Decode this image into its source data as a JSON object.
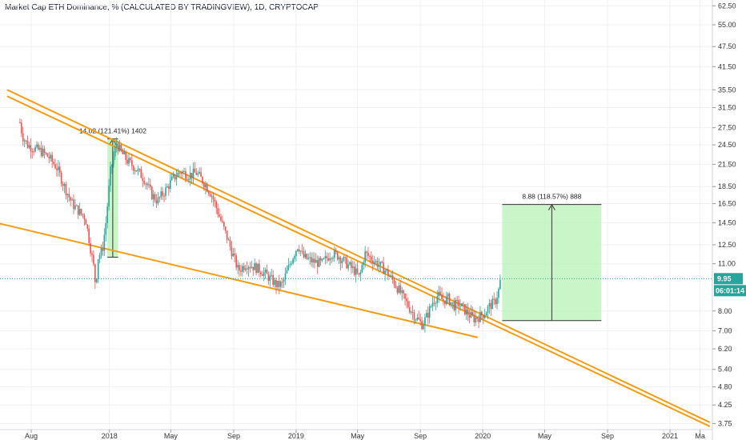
{
  "title": "Market Cap ETH Dominance, % (CALCULATED BY TRADINGVIEW), 1D, CRYPTOCAP",
  "colors": {
    "up": "#26a69a",
    "down": "#ef5350",
    "trendline": "#f39c12",
    "target_box": "#b7f2b7",
    "price_line": "#26a69a",
    "grid": "#eef1f5"
  },
  "chart_data": {
    "type": "candlestick",
    "title": "Market Cap ETH Dominance, % (CALCULATED BY TRADINGVIEW), 1D, CRYPTOCAP",
    "y_scale": "log",
    "y_ticks": [
      "62.50",
      "55.00",
      "47.50",
      "41.50",
      "35.50",
      "31.50",
      "27.50",
      "24.50",
      "21.50",
      "18.50",
      "16.50",
      "14.50",
      "12.50",
      "11.00",
      "8.00",
      "7.00",
      "6.20",
      "5.40",
      "4.80",
      "4.25",
      "3.75"
    ],
    "x_ticks": [
      "Aug",
      "2018",
      "May",
      "Sep",
      "2019",
      "May",
      "Sep",
      "2020",
      "May",
      "Sep",
      "2021",
      "Ma"
    ],
    "ylim": [
      3.6,
      65
    ],
    "xlim": [
      "2017-06-01",
      "2021-03-25"
    ],
    "price_path": [
      [
        "2017-07-10",
        28.5
      ],
      [
        "2017-07-15",
        26.0
      ],
      [
        "2017-07-25",
        24.5
      ],
      [
        "2017-08-05",
        24.0
      ],
      [
        "2017-08-20",
        23.5
      ],
      [
        "2017-09-05",
        22.5
      ],
      [
        "2017-09-20",
        21.0
      ],
      [
        "2017-10-05",
        18.5
      ],
      [
        "2017-10-20",
        16.5
      ],
      [
        "2017-11-05",
        15.5
      ],
      [
        "2017-11-15",
        15.0
      ],
      [
        "2017-11-22",
        13.0
      ],
      [
        "2017-12-01",
        10.8
      ],
      [
        "2017-12-05",
        9.5
      ],
      [
        "2017-12-10",
        11.5
      ],
      [
        "2017-12-18",
        12.0
      ],
      [
        "2017-12-25",
        14.5
      ],
      [
        "2018-01-03",
        20.5
      ],
      [
        "2018-01-10",
        23.0
      ],
      [
        "2018-01-15",
        24.8
      ],
      [
        "2018-01-22",
        23.5
      ],
      [
        "2018-02-05",
        22.0
      ],
      [
        "2018-02-20",
        21.0
      ],
      [
        "2018-03-10",
        19.5
      ],
      [
        "2018-03-25",
        17.5
      ],
      [
        "2018-04-05",
        16.8
      ],
      [
        "2018-04-20",
        18.0
      ],
      [
        "2018-05-05",
        19.5
      ],
      [
        "2018-05-20",
        20.5
      ],
      [
        "2018-06-05",
        20.0
      ],
      [
        "2018-06-20",
        20.3
      ],
      [
        "2018-07-05",
        19.0
      ],
      [
        "2018-07-20",
        17.5
      ],
      [
        "2018-08-05",
        15.0
      ],
      [
        "2018-08-20",
        13.0
      ],
      [
        "2018-09-01",
        11.5
      ],
      [
        "2018-09-10",
        10.5
      ],
      [
        "2018-09-25",
        11.0
      ],
      [
        "2018-10-10",
        10.8
      ],
      [
        "2018-10-25",
        10.5
      ],
      [
        "2018-11-10",
        10.0
      ],
      [
        "2018-11-25",
        9.5
      ],
      [
        "2018-12-05",
        9.6
      ],
      [
        "2018-12-15",
        10.5
      ],
      [
        "2018-12-25",
        11.5
      ],
      [
        "2019-01-05",
        12.5
      ],
      [
        "2019-01-15",
        11.5
      ],
      [
        "2019-02-01",
        11.2
      ],
      [
        "2019-02-20",
        11.0
      ],
      [
        "2019-03-10",
        11.8
      ],
      [
        "2019-03-25",
        11.6
      ],
      [
        "2019-04-10",
        11.0
      ],
      [
        "2019-04-25",
        10.5
      ],
      [
        "2019-05-05",
        10.0
      ],
      [
        "2019-05-15",
        11.8
      ],
      [
        "2019-05-25",
        11.5
      ],
      [
        "2019-06-10",
        11.0
      ],
      [
        "2019-06-25",
        10.5
      ],
      [
        "2019-07-10",
        9.8
      ],
      [
        "2019-07-25",
        9.0
      ],
      [
        "2019-08-10",
        8.2
      ],
      [
        "2019-08-25",
        7.6
      ],
      [
        "2019-09-05",
        7.3
      ],
      [
        "2019-09-15",
        7.8
      ],
      [
        "2019-09-25",
        8.5
      ],
      [
        "2019-10-05",
        8.9
      ],
      [
        "2019-10-15",
        8.6
      ],
      [
        "2019-10-25",
        8.7
      ],
      [
        "2019-11-05",
        8.3
      ],
      [
        "2019-11-15",
        8.4
      ],
      [
        "2019-11-25",
        8.1
      ],
      [
        "2019-12-05",
        7.8
      ],
      [
        "2019-12-15",
        7.6
      ],
      [
        "2019-12-25",
        7.7
      ],
      [
        "2020-01-05",
        7.9
      ],
      [
        "2020-01-15",
        8.3
      ],
      [
        "2020-01-25",
        8.5
      ],
      [
        "2020-02-01",
        9.2
      ],
      [
        "2020-02-05",
        9.95
      ]
    ],
    "current_value": "9.95",
    "countdown": "06:01:14",
    "annotations": [
      {
        "label": "14.02 (121.41%) 1402",
        "x_start": "2017-12-28",
        "x_end": "2018-01-18",
        "y_low": 11.5,
        "y_high": 25.5
      },
      {
        "label": "8.88 (118.57%) 888",
        "x_start": "2020-02-08",
        "x_end": "2020-08-20",
        "y_low": 7.5,
        "y_high": 16.4
      }
    ],
    "trendlines": [
      {
        "name": "upper-1",
        "from": [
          "2017-06-15",
          35.5
        ],
        "to": [
          "2021-03-20",
          3.78
        ]
      },
      {
        "name": "upper-2",
        "from": [
          "2017-06-15",
          34.0
        ],
        "to": [
          "2021-03-20",
          3.68
        ]
      },
      {
        "name": "lower",
        "from": [
          "2017-05-25",
          14.5
        ],
        "to": [
          "2019-12-22",
          6.7
        ]
      }
    ]
  }
}
